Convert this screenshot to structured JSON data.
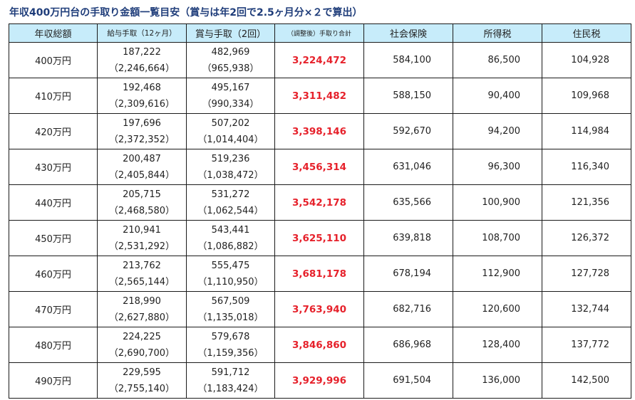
{
  "title": "年収400万円台の手取り金額一覧目安（賞与は年2回で2.5ヶ月分×２で算出）",
  "headers": {
    "income": "年収総額",
    "monthly": "給与手取（12ヶ月）",
    "bonus": "賞与手取（2回）",
    "net": "（調整後）手取り合計",
    "social": "社会保険",
    "income_tax": "所得税",
    "resident_tax": "住民税"
  },
  "colors": {
    "header_bg": "#c7ecfa",
    "net_text": "#e6212b",
    "title_text": "#1f3d7a"
  },
  "rows": [
    {
      "income": "400万円",
      "monthly": "187,222",
      "monthly_annual": "（2,246,664）",
      "bonus": "482,969",
      "bonus_annual": "（965,938）",
      "net": "3,224,472",
      "social": "584,100",
      "income_tax": "86,500",
      "resident_tax": "104,928"
    },
    {
      "income": "410万円",
      "monthly": "192,468",
      "monthly_annual": "（2,309,616）",
      "bonus": "495,167",
      "bonus_annual": "（990,334）",
      "net": "3,311,482",
      "social": "588,150",
      "income_tax": "90,400",
      "resident_tax": "109,968"
    },
    {
      "income": "420万円",
      "monthly": "197,696",
      "monthly_annual": "（2,372,352）",
      "bonus": "507,202",
      "bonus_annual": "（1,014,404）",
      "net": "3,398,146",
      "social": "592,670",
      "income_tax": "94,200",
      "resident_tax": "114,984"
    },
    {
      "income": "430万円",
      "monthly": "200,487",
      "monthly_annual": "（2,405,844）",
      "bonus": "519,236",
      "bonus_annual": "（1,038,472）",
      "net": "3,456,314",
      "social": "631,046",
      "income_tax": "96,300",
      "resident_tax": "116,340"
    },
    {
      "income": "440万円",
      "monthly": "205,715",
      "monthly_annual": "（2,468,580）",
      "bonus": "531,272",
      "bonus_annual": "（1,062,544）",
      "net": "3,542,178",
      "social": "635,566",
      "income_tax": "100,900",
      "resident_tax": "121,356"
    },
    {
      "income": "450万円",
      "monthly": "210,941",
      "monthly_annual": "（2,531,292）",
      "bonus": "543,441",
      "bonus_annual": "（1,086,882）",
      "net": "3,625,110",
      "social": "639,818",
      "income_tax": "108,700",
      "resident_tax": "126,372"
    },
    {
      "income": "460万円",
      "monthly": "213,762",
      "monthly_annual": "（2,565,144）",
      "bonus": "555,475",
      "bonus_annual": "（1,110,950）",
      "net": "3,681,178",
      "social": "678,194",
      "income_tax": "112,900",
      "resident_tax": "127,728"
    },
    {
      "income": "470万円",
      "monthly": "218,990",
      "monthly_annual": "（2,627,880）",
      "bonus": "567,509",
      "bonus_annual": "（1,135,018）",
      "net": "3,763,940",
      "social": "682,716",
      "income_tax": "120,600",
      "resident_tax": "132,744"
    },
    {
      "income": "480万円",
      "monthly": "224,225",
      "monthly_annual": "（2,690,700）",
      "bonus": "579,678",
      "bonus_annual": "（1,159,356）",
      "net": "3,846,860",
      "social": "686,968",
      "income_tax": "128,400",
      "resident_tax": "137,772"
    },
    {
      "income": "490万円",
      "monthly": "229,595",
      "monthly_annual": "（2,755,140）",
      "bonus": "591,712",
      "bonus_annual": "（1,183,424）",
      "net": "3,929,996",
      "social": "691,504",
      "income_tax": "136,000",
      "resident_tax": "142,500"
    }
  ]
}
